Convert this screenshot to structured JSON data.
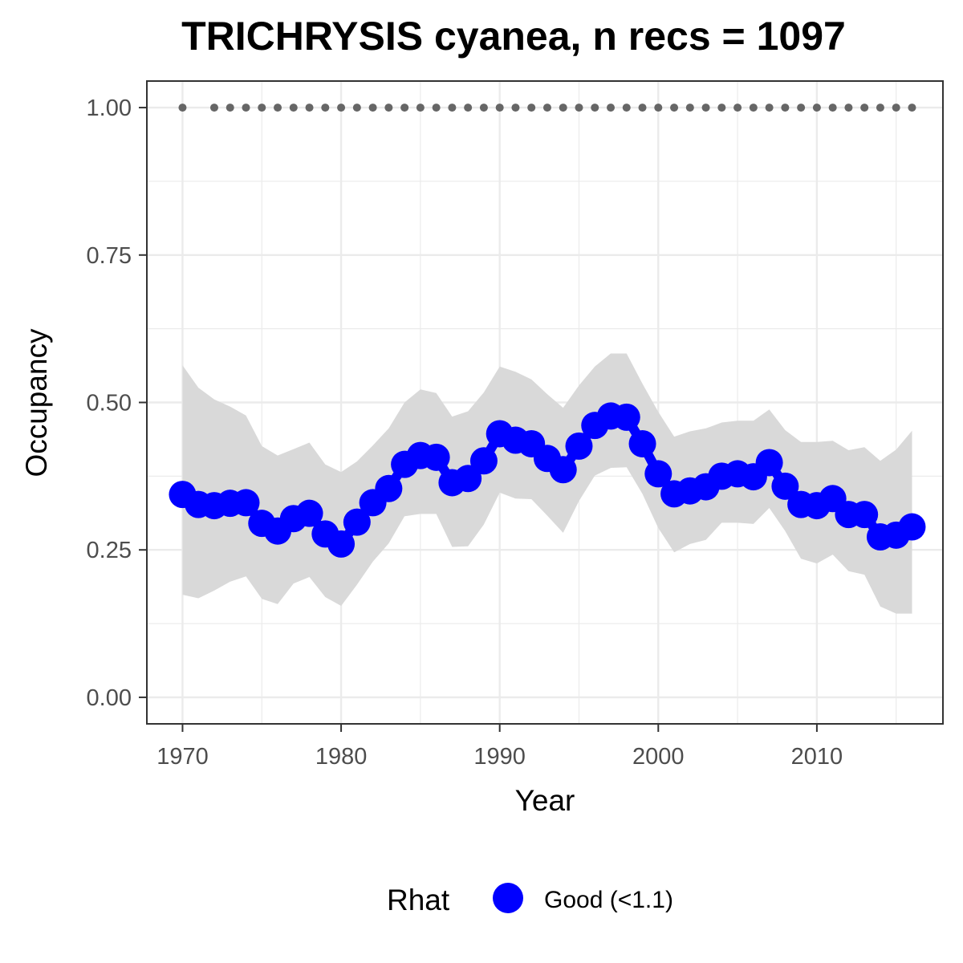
{
  "chart_data": {
    "type": "line",
    "title": "TRICHRYSIS cyanea, n recs = 1097",
    "xlabel": "Year",
    "ylabel": "Occupancy",
    "xlim": [
      1967.75,
      2017.95
    ],
    "ylim": [
      -0.045,
      1.045
    ],
    "x_ticks": [
      1970,
      1980,
      1990,
      2000,
      2010
    ],
    "x_tick_labels": [
      "1970",
      "1980",
      "1990",
      "2000",
      "2010"
    ],
    "y_ticks": [
      0,
      0.25,
      0.5,
      0.75,
      1.0
    ],
    "y_tick_labels": [
      "0.00",
      "0.25",
      "0.50",
      "0.75",
      "1.00"
    ],
    "grid": true,
    "colors": {
      "series": "#0000ff",
      "ribbon": "#d9d9d9",
      "record_dots": "#666666",
      "grid": "#ebebeb",
      "border": "#333333"
    },
    "series": [
      {
        "name": "Good (<1.1)",
        "x": [
          1970,
          1971,
          1972,
          1973,
          1974,
          1975,
          1976,
          1977,
          1978,
          1979,
          1980,
          1981,
          1982,
          1983,
          1984,
          1985,
          1986,
          1987,
          1988,
          1989,
          1990,
          1991,
          1992,
          1993,
          1994,
          1995,
          1996,
          1997,
          1998,
          1999,
          2000,
          2001,
          2002,
          2003,
          2004,
          2005,
          2006,
          2007,
          2008,
          2009,
          2010,
          2011,
          2012,
          2013,
          2014,
          2015,
          2016
        ],
        "y": [
          0.344,
          0.327,
          0.325,
          0.329,
          0.33,
          0.295,
          0.282,
          0.303,
          0.312,
          0.277,
          0.26,
          0.297,
          0.33,
          0.354,
          0.395,
          0.41,
          0.407,
          0.364,
          0.371,
          0.401,
          0.447,
          0.436,
          0.43,
          0.405,
          0.386,
          0.426,
          0.461,
          0.477,
          0.475,
          0.43,
          0.379,
          0.345,
          0.35,
          0.357,
          0.375,
          0.379,
          0.374,
          0.398,
          0.358,
          0.327,
          0.325,
          0.337,
          0.31,
          0.31,
          0.272,
          0.275,
          0.289
        ]
      }
    ],
    "ribbon": {
      "x": [
        1970,
        1971,
        1972,
        1973,
        1974,
        1975,
        1976,
        1977,
        1978,
        1979,
        1980,
        1981,
        1982,
        1983,
        1984,
        1985,
        1986,
        1987,
        1988,
        1989,
        1990,
        1991,
        1992,
        1993,
        1994,
        1995,
        1996,
        1997,
        1998,
        1999,
        2000,
        2001,
        2002,
        2003,
        2004,
        2005,
        2006,
        2007,
        2008,
        2009,
        2010,
        2011,
        2012,
        2013,
        2014,
        2015,
        2016
      ],
      "upper": [
        0.563,
        0.525,
        0.505,
        0.493,
        0.478,
        0.426,
        0.41,
        0.421,
        0.432,
        0.395,
        0.382,
        0.4,
        0.427,
        0.456,
        0.5,
        0.522,
        0.516,
        0.476,
        0.485,
        0.517,
        0.561,
        0.552,
        0.539,
        0.514,
        0.491,
        0.529,
        0.561,
        0.583,
        0.583,
        0.532,
        0.484,
        0.442,
        0.451,
        0.456,
        0.466,
        0.469,
        0.469,
        0.488,
        0.453,
        0.433,
        0.433,
        0.435,
        0.419,
        0.424,
        0.401,
        0.42,
        0.452
      ],
      "lower": [
        0.174,
        0.168,
        0.181,
        0.196,
        0.205,
        0.167,
        0.158,
        0.193,
        0.204,
        0.17,
        0.155,
        0.191,
        0.23,
        0.261,
        0.307,
        0.311,
        0.311,
        0.255,
        0.256,
        0.293,
        0.347,
        0.337,
        0.336,
        0.308,
        0.279,
        0.333,
        0.376,
        0.389,
        0.39,
        0.345,
        0.287,
        0.246,
        0.26,
        0.267,
        0.296,
        0.296,
        0.294,
        0.321,
        0.282,
        0.235,
        0.227,
        0.242,
        0.214,
        0.208,
        0.154,
        0.142,
        0.142
      ]
    },
    "record_years": [
      1970,
      1972,
      1973,
      1974,
      1975,
      1976,
      1977,
      1978,
      1979,
      1980,
      1981,
      1982,
      1983,
      1984,
      1985,
      1986,
      1987,
      1988,
      1989,
      1990,
      1991,
      1992,
      1993,
      1994,
      1995,
      1996,
      1997,
      1998,
      1999,
      2000,
      2001,
      2002,
      2003,
      2004,
      2005,
      2006,
      2007,
      2008,
      2009,
      2010,
      2011,
      2012,
      2013,
      2014,
      2015,
      2016
    ],
    "record_level": 1.0,
    "legend": {
      "title": "Rhat",
      "entries": [
        "Good (<1.1)"
      ],
      "placement": "bottom"
    }
  }
}
